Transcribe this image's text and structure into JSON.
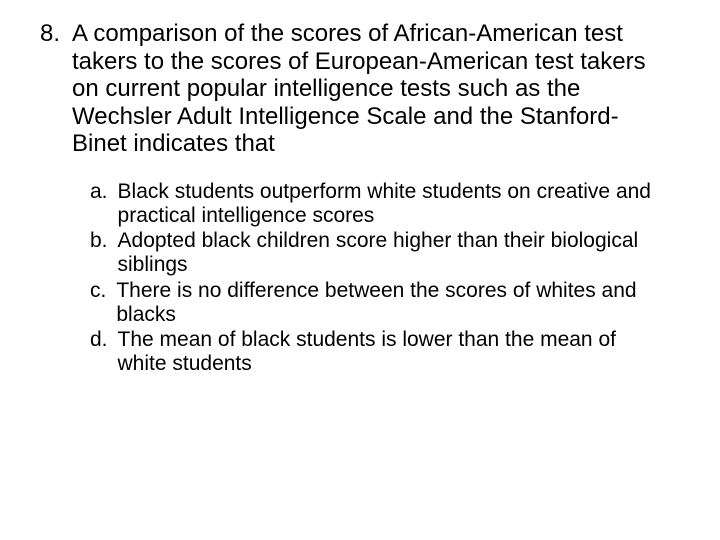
{
  "question": {
    "number": "8.",
    "text": "A comparison of the scores of African-American test takers to the scores of European-American test takers on current popular intelligence tests such as the Wechsler Adult Intelligence Scale and the Stanford-Binet indicates that",
    "fontsize": 24,
    "color": "#000000"
  },
  "options": [
    {
      "letter": "a.",
      "text": "Black students outperform white students on creative and practical intelligence scores"
    },
    {
      "letter": "b.",
      "text": "Adopted black children score higher than their biological siblings"
    },
    {
      "letter": "c.",
      "text": "There is no difference between the scores of whites and blacks"
    },
    {
      "letter": "d.",
      "text": "The mean of black students is lower than the mean of white students"
    }
  ],
  "options_fontsize": 21,
  "background_color": "#ffffff",
  "text_color": "#000000"
}
